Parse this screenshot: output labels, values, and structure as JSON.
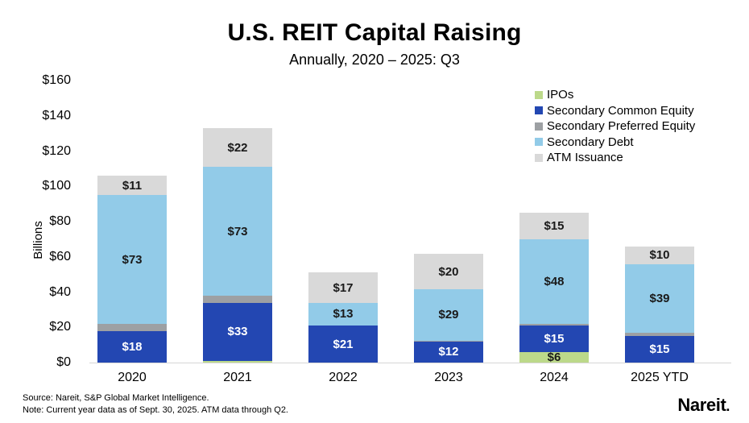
{
  "chart_data": {
    "type": "bar",
    "stacked": true,
    "title": "U.S. REIT Capital Raising",
    "subtitle": "Annually, 2020 – 2025: Q3",
    "ylabel": "Billions",
    "ylim": [
      0,
      160
    ],
    "yticks": [
      {
        "value": 0,
        "label": "$0"
      },
      {
        "value": 20,
        "label": "$20"
      },
      {
        "value": 40,
        "label": "$40"
      },
      {
        "value": 60,
        "label": "$60"
      },
      {
        "value": 80,
        "label": "$80"
      },
      {
        "value": 100,
        "label": "$100"
      },
      {
        "value": 120,
        "label": "$120"
      },
      {
        "value": 140,
        "label": "$140"
      },
      {
        "value": 160,
        "label": "$160"
      }
    ],
    "grid": false,
    "legend_position": "top-right",
    "categories": [
      "2020",
      "2021",
      "2022",
      "2023",
      "2024",
      "2025 YTD"
    ],
    "series": [
      {
        "name": "IPOs",
        "color": "#bcd98a",
        "values": [
          0,
          1,
          0,
          0,
          6,
          0
        ],
        "labels": [
          "",
          "",
          "",
          "",
          "$6",
          ""
        ],
        "label_color": "#1a1a1a"
      },
      {
        "name": "Secondary Common Equity",
        "color": "#2347b2",
        "values": [
          18,
          33,
          21,
          12,
          15,
          15
        ],
        "labels": [
          "$18",
          "$33",
          "$21",
          "$12",
          "$15",
          "$15"
        ],
        "label_color": "#ffffff"
      },
      {
        "name": "Secondary Preferred Equity",
        "color": "#9da0a3",
        "values": [
          4,
          4,
          0,
          0.5,
          1,
          2
        ],
        "labels": [
          "",
          "",
          "",
          "",
          "",
          ""
        ],
        "label_color": "#1a1a1a"
      },
      {
        "name": "Secondary Debt",
        "color": "#92cbe8",
        "values": [
          73,
          73,
          13,
          29,
          48,
          39
        ],
        "labels": [
          "$73",
          "$73",
          "$13",
          "$29",
          "$48",
          "$39"
        ],
        "label_color": "#1a1a1a"
      },
      {
        "name": "ATM Issuance",
        "color": "#d9d9d9",
        "values": [
          11,
          22,
          17,
          20,
          15,
          10
        ],
        "labels": [
          "$11",
          "$22",
          "$17",
          "$20",
          "$15",
          "$10"
        ],
        "label_color": "#1a1a1a"
      }
    ]
  },
  "footer": {
    "source_line": "Source: Nareit, S&P Global Market Intelligence.",
    "note_line": "Note: Current year data as of Sept. 30, 2025. ATM data through Q2.",
    "logo_text": "Nareit",
    "logo_dot": "."
  }
}
